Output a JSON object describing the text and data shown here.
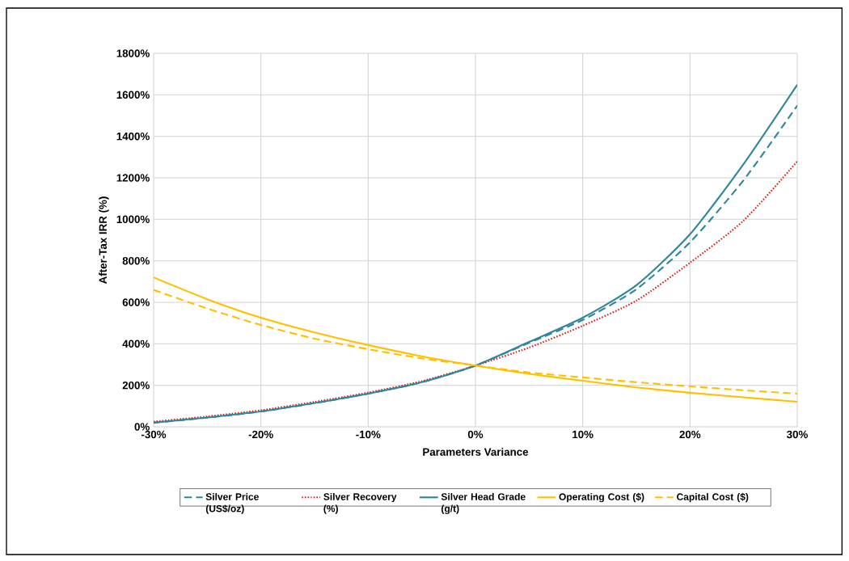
{
  "chart_data": {
    "type": "line",
    "xlabel": "Parameters Variance",
    "ylabel": "After-Tax IRR (%)",
    "x": [
      -30,
      -25,
      -20,
      -15,
      -10,
      -5,
      0,
      5,
      10,
      15,
      20,
      25,
      30
    ],
    "xlim": [
      -30,
      30
    ],
    "xticks": [
      {
        "value": -30,
        "label": "-30%"
      },
      {
        "value": -20,
        "label": "-20%"
      },
      {
        "value": -10,
        "label": "-10%"
      },
      {
        "value": 0,
        "label": "0%"
      },
      {
        "value": 10,
        "label": "10%"
      },
      {
        "value": 20,
        "label": "20%"
      },
      {
        "value": 30,
        "label": "30%"
      }
    ],
    "ylim": [
      0,
      1800
    ],
    "yticks": [
      {
        "value": 0,
        "label": "0%"
      },
      {
        "value": 200,
        "label": "200%"
      },
      {
        "value": 400,
        "label": "400%"
      },
      {
        "value": 600,
        "label": "600%"
      },
      {
        "value": 800,
        "label": "800%"
      },
      {
        "value": 1000,
        "label": "1000%"
      },
      {
        "value": 1200,
        "label": "1200%"
      },
      {
        "value": 1400,
        "label": "1400%"
      },
      {
        "value": 1600,
        "label": "1600%"
      },
      {
        "value": 1800,
        "label": "1800%"
      }
    ],
    "grid": true,
    "legend": "bottom",
    "marker": "none",
    "series": [
      {
        "name": "Silver Price (US$/oz)",
        "color": "#31869b",
        "line_style": "dashed",
        "values": [
          20,
          44,
          74,
          114,
          160,
          215,
          295,
          405,
          515,
          663,
          889,
          1189,
          1548
        ]
      },
      {
        "name": "Silver Recovery (%)",
        "color": "#e0201b",
        "line_style": "dotted",
        "values": [
          25,
          50,
          80,
          120,
          165,
          220,
          295,
          382,
          487,
          608,
          791,
          994,
          1279
        ]
      },
      {
        "name": "Silver Head Grade (g/t)",
        "color": "#31869b",
        "line_style": "solid",
        "values": [
          20,
          45,
          74,
          115,
          160,
          215,
          295,
          409,
          526,
          682,
          928,
          1267,
          1649
        ]
      },
      {
        "name": "Operating Cost ($)",
        "color": "#ffc000",
        "line_style": "solid",
        "values": [
          720,
          615,
          526,
          455,
          394,
          340,
          295,
          255,
          222,
          190,
          164,
          142,
          121
        ]
      },
      {
        "name": "Capital Cost ($)",
        "color": "#ffc000",
        "line_style": "dashed",
        "values": [
          660,
          570,
          491,
          425,
          374,
          330,
          295,
          262,
          238,
          215,
          195,
          176,
          160
        ]
      }
    ]
  }
}
